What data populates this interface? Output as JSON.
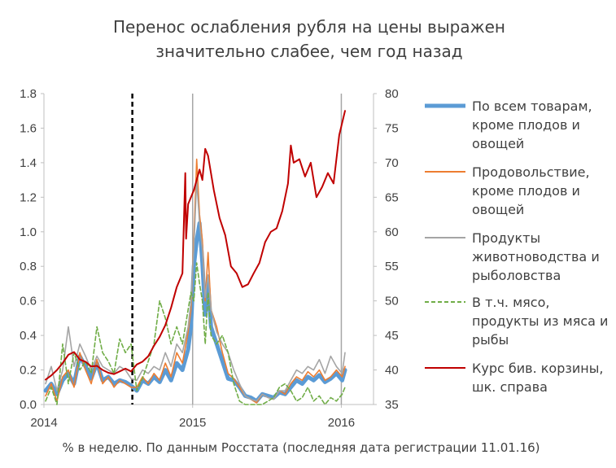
{
  "chart_data": {
    "type": "line",
    "title_lines": [
      "Перенос ослабления рубля на цены выражен",
      "значительно слабее, чем год назад"
    ],
    "footnote": "% в неделю. По данным Росстата (последняя дата регистрации 11.01.16)",
    "x_range": [
      "2014-01-01",
      "2016-03-20"
    ],
    "x_tick_labels": [
      "2014",
      "2015",
      "2016"
    ],
    "y_left": {
      "range": [
        0,
        1.8
      ],
      "ticks": [
        "0.0",
        "0.2",
        "0.4",
        "0.6",
        "0.8",
        "1.0",
        "1.2",
        "1.4",
        "1.6",
        "1.8"
      ]
    },
    "y_right": {
      "range": [
        35,
        80
      ],
      "ticks": [
        "35",
        "40",
        "45",
        "50",
        "55",
        "60",
        "65",
        "70",
        "75",
        "80"
      ]
    },
    "grid": false,
    "reference_lines": [
      {
        "x": "2014-08-06",
        "style": "dashed",
        "color": "#000000"
      },
      {
        "x": "2015-01-01",
        "style": "solid",
        "color": "#a6a6a6"
      },
      {
        "x": "2016-01-01",
        "style": "solid",
        "color": "#a6a6a6"
      }
    ],
    "legend_position": "right",
    "series": [
      {
        "name_lines": [
          "По всем товарам,",
          "кроме плодов и",
          "овощей"
        ],
        "color": "#5b9bd5",
        "width": 5,
        "dash": "",
        "axis": "left",
        "x": [
          "2014-01-05",
          "2014-01-19",
          "2014-02-02",
          "2014-02-16",
          "2014-03-02",
          "2014-03-16",
          "2014-03-30",
          "2014-04-13",
          "2014-04-27",
          "2014-05-11",
          "2014-05-25",
          "2014-06-08",
          "2014-06-22",
          "2014-07-06",
          "2014-07-20",
          "2014-08-03",
          "2014-08-17",
          "2014-08-31",
          "2014-09-14",
          "2014-09-28",
          "2014-10-12",
          "2014-10-26",
          "2014-11-09",
          "2014-11-23",
          "2014-12-07",
          "2014-12-21",
          "2014-12-28",
          "2015-01-04",
          "2015-01-11",
          "2015-01-18",
          "2015-01-25",
          "2015-02-01",
          "2015-02-08",
          "2015-02-15",
          "2015-03-01",
          "2015-03-15",
          "2015-03-29",
          "2015-04-12",
          "2015-04-26",
          "2015-05-10",
          "2015-05-24",
          "2015-06-07",
          "2015-06-21",
          "2015-07-05",
          "2015-07-19",
          "2015-08-02",
          "2015-08-16",
          "2015-08-30",
          "2015-09-13",
          "2015-09-27",
          "2015-10-11",
          "2015-10-25",
          "2015-11-08",
          "2015-11-22",
          "2015-12-06",
          "2015-12-20",
          "2016-01-03",
          "2016-01-10"
        ],
        "values": [
          0.08,
          0.12,
          0.06,
          0.14,
          0.18,
          0.12,
          0.28,
          0.22,
          0.15,
          0.24,
          0.14,
          0.16,
          0.12,
          0.14,
          0.13,
          0.11,
          0.08,
          0.14,
          0.12,
          0.16,
          0.13,
          0.2,
          0.14,
          0.24,
          0.2,
          0.32,
          0.45,
          0.8,
          0.95,
          1.05,
          0.82,
          0.52,
          0.7,
          0.45,
          0.35,
          0.25,
          0.15,
          0.14,
          0.1,
          0.05,
          0.04,
          0.02,
          0.06,
          0.05,
          0.04,
          0.07,
          0.06,
          0.1,
          0.14,
          0.12,
          0.16,
          0.14,
          0.17,
          0.13,
          0.15,
          0.18,
          0.14,
          0.2
        ]
      },
      {
        "name_lines": [
          "Продовольствие,",
          "кроме плодов и",
          "овощей"
        ],
        "color": "#ed7d31",
        "width": 1.6,
        "dash": "",
        "axis": "left",
        "x": [
          "2014-01-05",
          "2014-01-19",
          "2014-02-02",
          "2014-02-16",
          "2014-03-02",
          "2014-03-16",
          "2014-03-30",
          "2014-04-13",
          "2014-04-27",
          "2014-05-11",
          "2014-05-25",
          "2014-06-08",
          "2014-06-22",
          "2014-07-06",
          "2014-07-20",
          "2014-08-03",
          "2014-08-17",
          "2014-08-31",
          "2014-09-14",
          "2014-09-28",
          "2014-10-12",
          "2014-10-26",
          "2014-11-09",
          "2014-11-23",
          "2014-12-07",
          "2014-12-21",
          "2014-12-28",
          "2015-01-04",
          "2015-01-11",
          "2015-01-18",
          "2015-01-25",
          "2015-02-01",
          "2015-02-08",
          "2015-02-15",
          "2015-03-01",
          "2015-03-15",
          "2015-03-29",
          "2015-04-12",
          "2015-04-26",
          "2015-05-10",
          "2015-05-24",
          "2015-06-07",
          "2015-06-21",
          "2015-07-05",
          "2015-07-19",
          "2015-08-02",
          "2015-08-16",
          "2015-08-30",
          "2015-09-13",
          "2015-09-27",
          "2015-10-11",
          "2015-10-25",
          "2015-11-08",
          "2015-11-22",
          "2015-12-06",
          "2015-12-20",
          "2016-01-03",
          "2016-01-10"
        ],
        "values": [
          0.05,
          0.12,
          0.02,
          0.16,
          0.2,
          0.1,
          0.3,
          0.2,
          0.12,
          0.26,
          0.12,
          0.16,
          0.1,
          0.14,
          0.12,
          0.1,
          0.1,
          0.16,
          0.12,
          0.18,
          0.14,
          0.24,
          0.16,
          0.3,
          0.24,
          0.42,
          0.55,
          0.95,
          1.42,
          1.1,
          0.95,
          0.6,
          0.88,
          0.55,
          0.45,
          0.3,
          0.18,
          0.15,
          0.1,
          0.05,
          0.03,
          0.01,
          0.06,
          0.04,
          0.03,
          0.08,
          0.06,
          0.12,
          0.16,
          0.14,
          0.19,
          0.16,
          0.2,
          0.14,
          0.16,
          0.2,
          0.16,
          0.22
        ]
      },
      {
        "name_lines": [
          "Продукты",
          "животноводства и",
          "рыболовства"
        ],
        "color": "#a5a5a5",
        "width": 1.6,
        "dash": "",
        "axis": "left",
        "x": [
          "2014-01-05",
          "2014-01-19",
          "2014-02-02",
          "2014-02-16",
          "2014-03-02",
          "2014-03-16",
          "2014-03-30",
          "2014-04-13",
          "2014-04-27",
          "2014-05-11",
          "2014-05-25",
          "2014-06-08",
          "2014-06-22",
          "2014-07-06",
          "2014-07-20",
          "2014-08-03",
          "2014-08-17",
          "2014-08-31",
          "2014-09-14",
          "2014-09-28",
          "2014-10-12",
          "2014-10-26",
          "2014-11-09",
          "2014-11-23",
          "2014-12-07",
          "2014-12-21",
          "2014-12-28",
          "2015-01-04",
          "2015-01-11",
          "2015-01-18",
          "2015-01-25",
          "2015-02-01",
          "2015-02-08",
          "2015-02-15",
          "2015-03-01",
          "2015-03-15",
          "2015-03-29",
          "2015-04-12",
          "2015-04-26",
          "2015-05-10",
          "2015-05-24",
          "2015-06-07",
          "2015-06-21",
          "2015-07-05",
          "2015-07-19",
          "2015-08-02",
          "2015-08-16",
          "2015-08-30",
          "2015-09-13",
          "2015-09-27",
          "2015-10-11",
          "2015-10-25",
          "2015-11-08",
          "2015-11-22",
          "2015-12-06",
          "2015-12-20",
          "2016-01-03",
          "2016-01-10"
        ],
        "values": [
          0.12,
          0.22,
          0.08,
          0.2,
          0.45,
          0.22,
          0.35,
          0.28,
          0.2,
          0.28,
          0.22,
          0.2,
          0.18,
          0.22,
          0.2,
          0.15,
          0.14,
          0.2,
          0.18,
          0.22,
          0.2,
          0.3,
          0.22,
          0.35,
          0.3,
          0.45,
          0.6,
          0.9,
          1.3,
          1.05,
          0.9,
          0.62,
          0.75,
          0.55,
          0.42,
          0.35,
          0.3,
          0.2,
          0.12,
          0.05,
          0.03,
          0.02,
          0.06,
          0.04,
          0.03,
          0.08,
          0.08,
          0.14,
          0.2,
          0.18,
          0.22,
          0.2,
          0.26,
          0.18,
          0.28,
          0.22,
          0.18,
          0.3
        ]
      },
      {
        "name_lines": [
          "В т.ч. мясо,",
          "продукты из мяса и",
          "рыбы"
        ],
        "color": "#70ad47",
        "width": 1.6,
        "dash": "5,3",
        "axis": "left",
        "x": [
          "2014-01-05",
          "2014-01-19",
          "2014-02-02",
          "2014-02-16",
          "2014-03-02",
          "2014-03-16",
          "2014-03-30",
          "2014-04-13",
          "2014-04-27",
          "2014-05-11",
          "2014-05-25",
          "2014-06-08",
          "2014-06-22",
          "2014-07-06",
          "2014-07-20",
          "2014-08-03",
          "2014-08-17",
          "2014-08-31",
          "2014-09-14",
          "2014-09-28",
          "2014-10-12",
          "2014-10-26",
          "2014-11-09",
          "2014-11-23",
          "2014-12-07",
          "2014-12-21",
          "2014-12-28",
          "2015-01-04",
          "2015-01-11",
          "2015-01-18",
          "2015-01-25",
          "2015-02-01",
          "2015-02-08",
          "2015-02-15",
          "2015-03-01",
          "2015-03-15",
          "2015-03-29",
          "2015-04-12",
          "2015-04-26",
          "2015-05-10",
          "2015-05-24",
          "2015-06-07",
          "2015-06-21",
          "2015-07-05",
          "2015-07-19",
          "2015-08-02",
          "2015-08-16",
          "2015-08-30",
          "2015-09-13",
          "2015-09-27",
          "2015-10-11",
          "2015-10-25",
          "2015-11-08",
          "2015-11-22",
          "2015-12-06",
          "2015-12-20",
          "2016-01-03",
          "2016-01-10"
        ],
        "values": [
          0.02,
          0.1,
          0.0,
          0.35,
          0.12,
          0.3,
          0.2,
          0.25,
          0.18,
          0.45,
          0.3,
          0.25,
          0.18,
          0.38,
          0.3,
          0.35,
          0.08,
          0.15,
          0.25,
          0.35,
          0.6,
          0.5,
          0.35,
          0.45,
          0.35,
          0.55,
          0.65,
          0.6,
          0.82,
          0.7,
          0.6,
          0.35,
          0.65,
          0.4,
          0.35,
          0.4,
          0.3,
          0.12,
          0.02,
          0.0,
          0.0,
          0.0,
          0.0,
          0.02,
          0.04,
          0.1,
          0.12,
          0.08,
          0.02,
          0.04,
          0.1,
          0.02,
          0.05,
          0.0,
          0.04,
          0.02,
          0.06,
          0.1
        ]
      },
      {
        "name_lines": [
          "Курс бив. корзины,",
          "шк. справа"
        ],
        "color": "#c00000",
        "width": 2,
        "dash": "",
        "axis": "right",
        "x": [
          "2014-01-05",
          "2014-01-19",
          "2014-02-02",
          "2014-02-16",
          "2014-03-02",
          "2014-03-16",
          "2014-03-30",
          "2014-04-13",
          "2014-04-27",
          "2014-05-11",
          "2014-05-25",
          "2014-06-08",
          "2014-06-22",
          "2014-07-06",
          "2014-07-20",
          "2014-08-03",
          "2014-08-17",
          "2014-08-31",
          "2014-09-14",
          "2014-09-28",
          "2014-10-12",
          "2014-10-26",
          "2014-11-09",
          "2014-11-23",
          "2014-12-07",
          "2014-12-14",
          "2014-12-16",
          "2014-12-21",
          "2015-01-04",
          "2015-01-18",
          "2015-01-25",
          "2015-02-01",
          "2015-02-08",
          "2015-02-22",
          "2015-03-08",
          "2015-03-22",
          "2015-04-05",
          "2015-04-19",
          "2015-05-03",
          "2015-05-17",
          "2015-05-31",
          "2015-06-14",
          "2015-06-28",
          "2015-07-12",
          "2015-07-26",
          "2015-08-09",
          "2015-08-23",
          "2015-08-30",
          "2015-09-06",
          "2015-09-20",
          "2015-10-04",
          "2015-10-18",
          "2015-11-01",
          "2015-11-15",
          "2015-11-29",
          "2015-12-13",
          "2015-12-27",
          "2016-01-10"
        ],
        "values": [
          38.6,
          39.2,
          40.0,
          41.0,
          42.2,
          42.6,
          41.5,
          41.2,
          40.5,
          40.6,
          40.0,
          39.6,
          39.4,
          39.8,
          40.2,
          39.8,
          40.8,
          41.2,
          42.0,
          43.5,
          44.8,
          46.5,
          49.0,
          52.0,
          54.0,
          68.5,
          59.0,
          64.0,
          66.0,
          69.0,
          67.5,
          72.0,
          71.0,
          66.0,
          62.0,
          59.5,
          55.0,
          54.0,
          52.0,
          52.4,
          54.0,
          55.5,
          58.5,
          60.0,
          60.5,
          63.0,
          67.0,
          72.5,
          70.0,
          70.5,
          68.0,
          70.0,
          65.0,
          66.5,
          68.5,
          67.0,
          74.0,
          77.5
        ]
      }
    ]
  }
}
